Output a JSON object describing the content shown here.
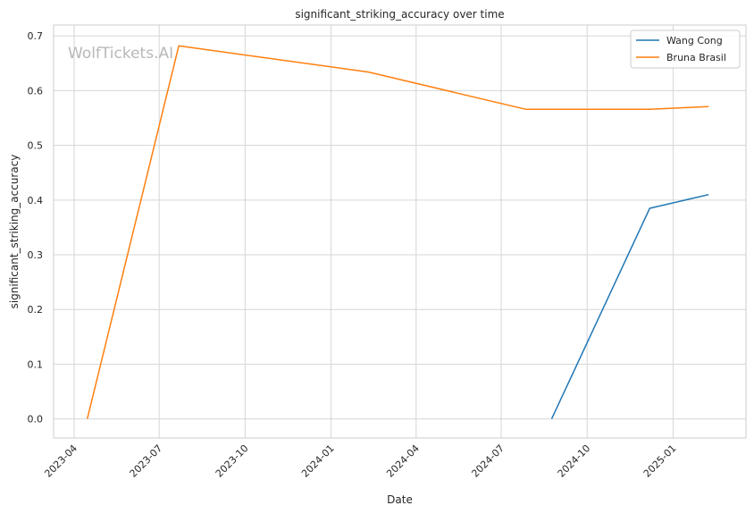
{
  "chart_data": {
    "type": "line",
    "title": "significant_striking_accuracy over time",
    "xlabel": "Date",
    "ylabel": "significant_striking_accuracy",
    "watermark": "WolfTickets.AI",
    "x_ticks": [
      "2023-04",
      "2023-07",
      "2023-10",
      "2024-01",
      "2024-04",
      "2024-07",
      "2024-10",
      "2025-01"
    ],
    "x_range": [
      "2023-03-10",
      "2025-03-20"
    ],
    "y_ticks": [
      0.0,
      0.1,
      0.2,
      0.3,
      0.4,
      0.5,
      0.6,
      0.7
    ],
    "y_tick_labels": [
      "0.0",
      "0.1",
      "0.2",
      "0.3",
      "0.4",
      "0.5",
      "0.6",
      "0.7"
    ],
    "ylim": [
      -0.035,
      0.72
    ],
    "grid": true,
    "legend_position": "top-right",
    "series": [
      {
        "name": "Wang Cong",
        "color": "#1f77b4",
        "x": [
          "2024-08-24",
          "2024-12-07",
          "2025-02-08"
        ],
        "y": [
          0.0,
          0.385,
          0.41
        ]
      },
      {
        "name": "Bruna Brasil",
        "color": "#ff7f0e",
        "x": [
          "2023-04-15",
          "2023-07-22",
          "2024-02-10",
          "2024-07-27",
          "2024-12-07",
          "2025-02-08"
        ],
        "y": [
          0.0,
          0.682,
          0.634,
          0.566,
          0.566,
          0.571
        ]
      }
    ]
  }
}
